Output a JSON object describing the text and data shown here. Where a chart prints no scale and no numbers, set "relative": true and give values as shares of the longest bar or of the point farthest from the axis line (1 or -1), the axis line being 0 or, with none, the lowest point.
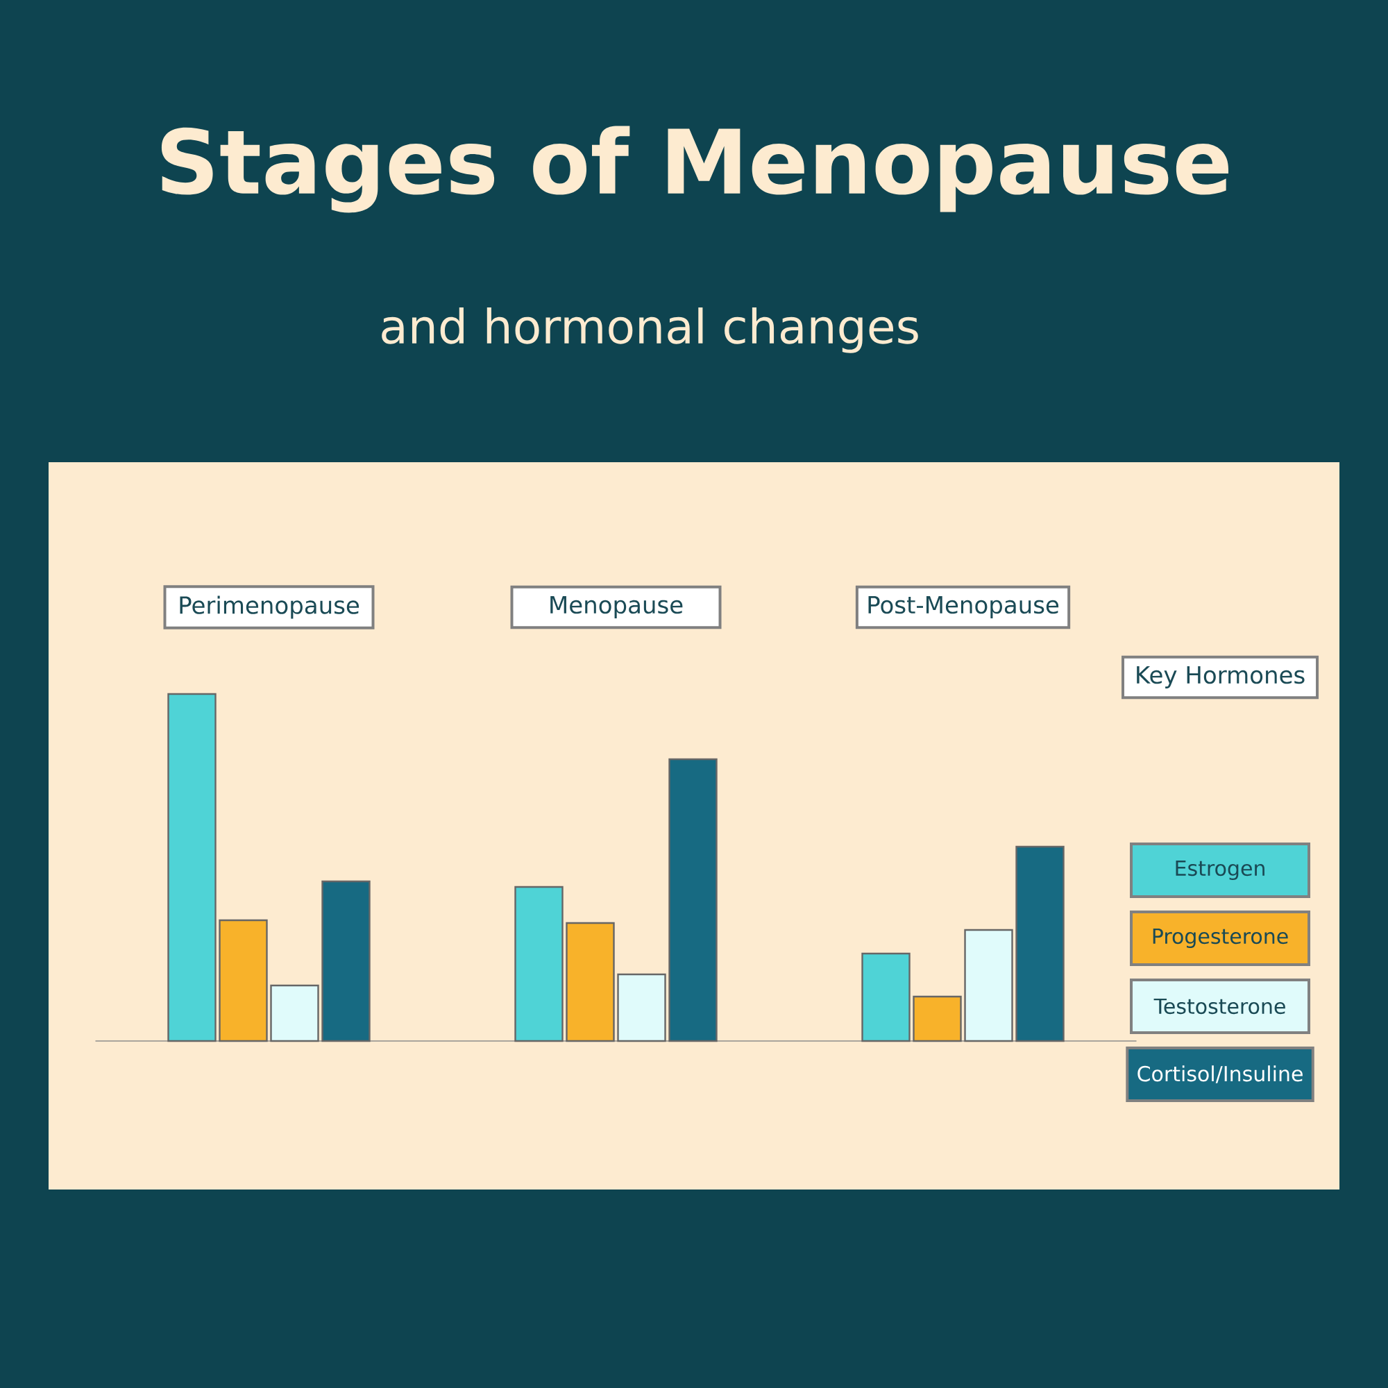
{
  "chart_data": {
    "type": "bar",
    "title": "Stages of Menopause",
    "subtitle": "and hormonal changes",
    "relative": true,
    "legend": "right",
    "legend_title": "Key Hormones",
    "categories": [
      "Perimenopause",
      "Menopause",
      "Post-Menopause"
    ],
    "series": [
      {
        "name": "Estrogen",
        "color": "#4fd3d6",
        "values": [
          1,
          0.444,
          0.252
        ]
      },
      {
        "name": "Progesterone",
        "color": "#f8b22a",
        "values": [
          0.348,
          0.34,
          0.128
        ]
      },
      {
        "name": "Testosterone",
        "color": "#e0fbfb",
        "values": [
          0.16,
          0.192,
          0.32
        ]
      },
      {
        "name": "Cortisol/Insuline",
        "color": "#176a82",
        "values": [
          0.46,
          0.812,
          0.56
        ]
      }
    ]
  }
}
